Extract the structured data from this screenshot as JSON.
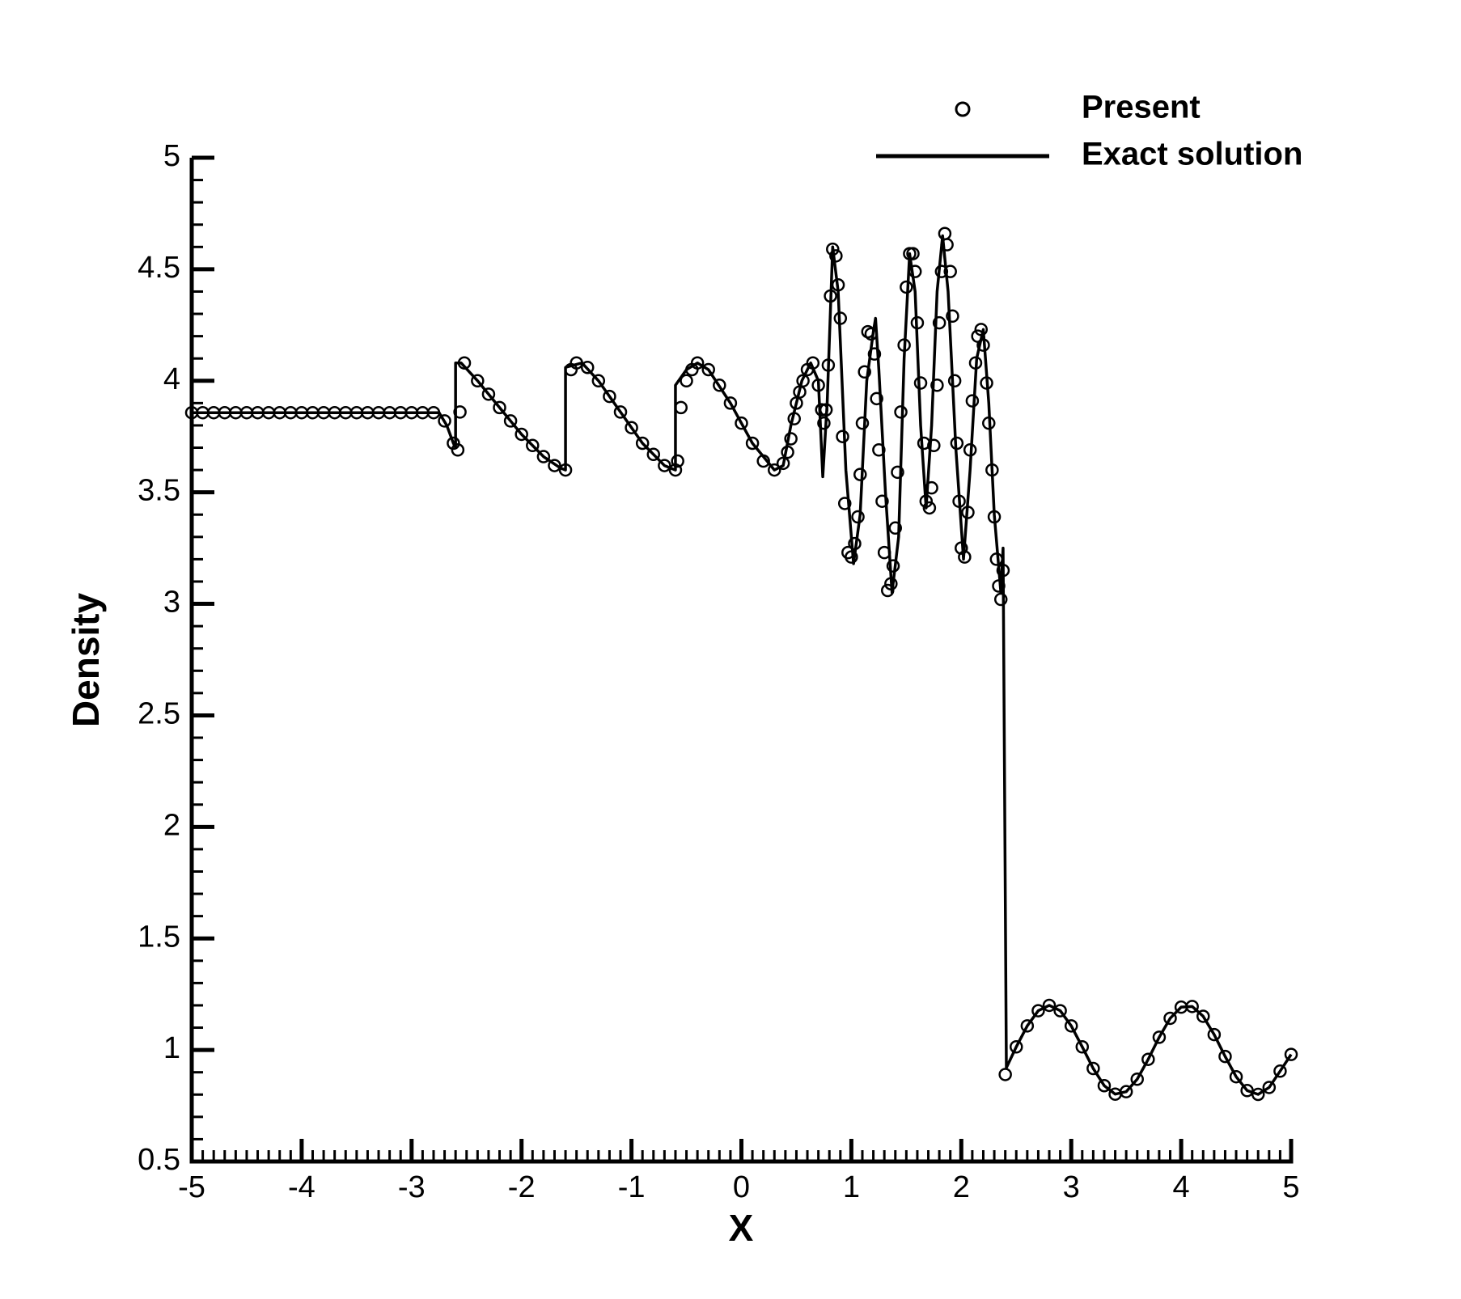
{
  "chart_data": {
    "type": "line",
    "xlabel": "X",
    "ylabel": "Density",
    "xlim": [
      -5,
      5
    ],
    "xticks": [
      -5,
      -4,
      -3,
      -2,
      -1,
      0,
      1,
      2,
      3,
      4,
      5
    ],
    "xminor": 10,
    "ylim": [
      0.5,
      5
    ],
    "yticks": [
      0.5,
      1,
      1.5,
      2,
      2.5,
      3,
      3.5,
      4,
      4.5,
      5
    ],
    "yminor": 5,
    "grid": false,
    "legend": "upper-right",
    "series": [
      {
        "name": "Present",
        "color": "#000000",
        "mode": "markers",
        "x": [
          -5,
          -4.9,
          -4.8,
          -4.7,
          -4.6,
          -4.5,
          -4.4,
          -4.3,
          -4.2,
          -4.1,
          -4,
          -3.9,
          -3.8,
          -3.7,
          -3.6,
          -3.5,
          -3.4,
          -3.3,
          -3.2,
          -3.1,
          -3,
          -2.9,
          -2.8,
          -2.7,
          -2.62,
          -2.58,
          -2.56,
          -2.52,
          -2.4,
          -2.3,
          -2.2,
          -2.1,
          -2,
          -1.9,
          -1.8,
          -1.7,
          -1.6,
          -1.55,
          -1.5,
          -1.4,
          -1.3,
          -1.2,
          -1.1,
          -1,
          -0.9,
          -0.8,
          -0.7,
          -0.6,
          -0.58,
          -0.55,
          -0.5,
          -0.45,
          -0.4,
          -0.3,
          -0.2,
          -0.1,
          0,
          0.1,
          0.2,
          0.3,
          0.38,
          0.42,
          0.45,
          0.48,
          0.5,
          0.53,
          0.56,
          0.6,
          0.65,
          0.7,
          0.73,
          0.75,
          0.77,
          0.79,
          0.81,
          0.83,
          0.86,
          0.88,
          0.9,
          0.92,
          0.94,
          0.97,
          1,
          1.03,
          1.06,
          1.08,
          1.1,
          1.12,
          1.15,
          1.18,
          1.21,
          1.23,
          1.25,
          1.28,
          1.3,
          1.33,
          1.36,
          1.38,
          1.4,
          1.42,
          1.45,
          1.48,
          1.5,
          1.53,
          1.56,
          1.58,
          1.6,
          1.63,
          1.66,
          1.68,
          1.71,
          1.73,
          1.75,
          1.78,
          1.8,
          1.82,
          1.85,
          1.87,
          1.9,
          1.92,
          1.94,
          1.96,
          1.98,
          2,
          2.03,
          2.06,
          2.08,
          2.1,
          2.13,
          2.15,
          2.18,
          2.2,
          2.23,
          2.25,
          2.28,
          2.3,
          2.32,
          2.34,
          2.36,
          2.38,
          2.4,
          2.5,
          2.6,
          2.7,
          2.8,
          2.9,
          3,
          3.1,
          3.2,
          3.3,
          3.4,
          3.5,
          3.6,
          3.7,
          3.8,
          3.9,
          4,
          4.1,
          4.2,
          4.3,
          4.4,
          4.5,
          4.6,
          4.7,
          4.8,
          4.9,
          5
        ],
        "values": [
          3.857,
          3.857,
          3.857,
          3.857,
          3.857,
          3.857,
          3.857,
          3.857,
          3.857,
          3.857,
          3.857,
          3.857,
          3.857,
          3.857,
          3.857,
          3.857,
          3.857,
          3.857,
          3.857,
          3.857,
          3.857,
          3.857,
          3.857,
          3.82,
          3.72,
          3.69,
          3.86,
          4.08,
          4.0,
          3.94,
          3.88,
          3.82,
          3.76,
          3.71,
          3.66,
          3.62,
          3.6,
          4.05,
          4.08,
          4.06,
          4.0,
          3.93,
          3.86,
          3.79,
          3.72,
          3.67,
          3.62,
          3.6,
          3.64,
          3.88,
          4.0,
          4.05,
          4.08,
          4.05,
          3.98,
          3.9,
          3.81,
          3.72,
          3.64,
          3.6,
          3.63,
          3.68,
          3.74,
          3.83,
          3.9,
          3.95,
          4.0,
          4.05,
          4.08,
          3.98,
          3.87,
          3.81,
          3.87,
          4.07,
          4.38,
          4.59,
          4.56,
          4.43,
          4.28,
          3.75,
          3.45,
          3.23,
          3.21,
          3.27,
          3.39,
          3.58,
          3.81,
          4.04,
          4.22,
          4.21,
          4.12,
          3.92,
          3.69,
          3.46,
          3.23,
          3.06,
          3.09,
          3.17,
          3.34,
          3.59,
          3.86,
          4.16,
          4.42,
          4.57,
          4.57,
          4.49,
          4.26,
          3.99,
          3.72,
          3.46,
          3.43,
          3.52,
          3.71,
          3.98,
          4.26,
          4.49,
          4.66,
          4.61,
          4.49,
          4.29,
          4.0,
          3.72,
          3.46,
          3.25,
          3.21,
          3.41,
          3.69,
          3.91,
          4.08,
          4.2,
          4.23,
          4.16,
          3.99,
          3.81,
          3.6,
          3.39,
          3.2,
          3.08,
          3.02,
          3.15,
          0.89,
          1.014,
          1.108,
          1.176,
          1.2,
          1.176,
          1.108,
          1.014,
          0.917,
          0.84,
          0.802,
          0.813,
          0.869,
          0.958,
          1.057,
          1.142,
          1.192,
          1.195,
          1.151,
          1.069,
          0.971,
          0.88,
          0.818,
          0.801,
          0.832,
          0.905,
          0.98
        ]
      },
      {
        "name": "Exact solution",
        "color": "#000000",
        "mode": "lines",
        "x": [
          -5,
          -2.75,
          -2.68,
          -2.62,
          -2.6,
          -2.6,
          -2.55,
          -2.4,
          -2.2,
          -2,
          -1.8,
          -1.65,
          -1.6,
          -1.6,
          -1.45,
          -1.3,
          -1.1,
          -0.9,
          -0.7,
          -0.6,
          -0.6,
          -0.5,
          -0.4,
          -0.3,
          -0.1,
          0.1,
          0.3,
          0.38,
          0.45,
          0.55,
          0.63,
          0.7,
          0.74,
          0.78,
          0.83,
          0.88,
          0.95,
          1.02,
          1.08,
          1.14,
          1.2,
          1.22,
          1.25,
          1.31,
          1.37,
          1.43,
          1.48,
          1.53,
          1.58,
          1.63,
          1.68,
          1.73,
          1.78,
          1.83,
          1.88,
          1.95,
          2.02,
          2.08,
          2.14,
          2.2,
          2.25,
          2.3,
          2.36,
          2.38,
          2.41,
          2.5,
          2.6,
          2.7,
          2.8,
          2.9,
          3,
          3.1,
          3.2,
          3.3,
          3.4,
          3.5,
          3.6,
          3.7,
          3.8,
          3.9,
          4,
          4.1,
          4.2,
          4.3,
          4.4,
          4.5,
          4.6,
          4.7,
          4.8,
          4.9,
          5
        ],
        "values": [
          3.857,
          3.857,
          3.8,
          3.72,
          3.7,
          4.08,
          4.08,
          4.0,
          3.88,
          3.76,
          3.66,
          3.61,
          3.6,
          4.06,
          4.08,
          4.0,
          3.86,
          3.72,
          3.62,
          3.6,
          3.98,
          4.05,
          4.08,
          4.05,
          3.9,
          3.72,
          3.6,
          3.62,
          3.8,
          4.0,
          4.08,
          4.0,
          3.57,
          3.9,
          4.6,
          4.4,
          3.6,
          3.18,
          3.4,
          4.0,
          4.22,
          4.28,
          4.05,
          3.5,
          3.05,
          3.3,
          4.1,
          4.57,
          4.4,
          3.8,
          3.43,
          3.8,
          4.4,
          4.65,
          4.4,
          3.7,
          3.2,
          3.6,
          4.1,
          4.23,
          3.9,
          3.4,
          3.05,
          3.25,
          0.92,
          1.014,
          1.108,
          1.176,
          1.2,
          1.176,
          1.108,
          1.014,
          0.917,
          0.84,
          0.802,
          0.813,
          0.869,
          0.958,
          1.057,
          1.142,
          1.192,
          1.195,
          1.151,
          1.069,
          0.971,
          0.88,
          0.818,
          0.801,
          0.832,
          0.905,
          0.98
        ]
      }
    ]
  }
}
